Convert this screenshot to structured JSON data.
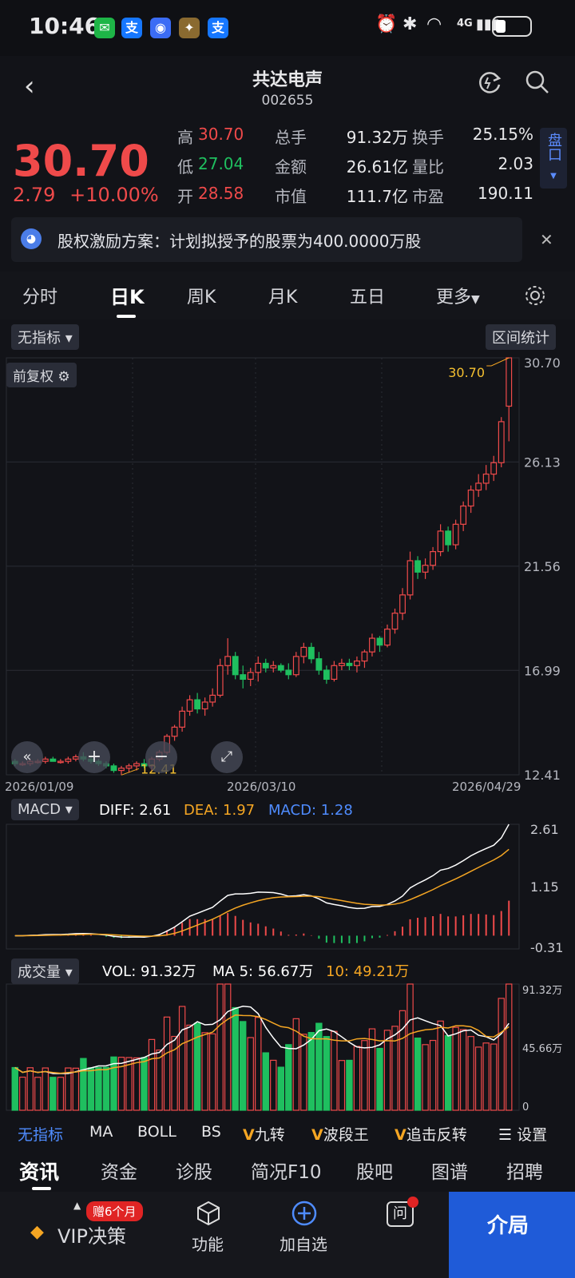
{
  "status": {
    "time": "10:46",
    "battery_icon": "battery-icon",
    "network": "4G"
  },
  "header": {
    "title": "共达电声",
    "code": "002655"
  },
  "quote": {
    "price": "30.70",
    "change": "2.79",
    "change_pct": "+10.00%",
    "rows": [
      {
        "l1": "高",
        "v1": "30.70",
        "l2": "总手",
        "v2": "91.32万",
        "l3": "换手",
        "v3": "25.15%"
      },
      {
        "l1": "低",
        "v1": "27.04",
        "l2": "金额",
        "v2": "26.61亿",
        "l3": "量比",
        "v3": "2.03"
      },
      {
        "l1": "开",
        "v1": "28.58",
        "l2": "市值",
        "v2": "111.7亿",
        "l3": "市盈",
        "v3": "190.11"
      }
    ],
    "pankou": "盘口"
  },
  "notice": {
    "text": "股权激励方案：计划拟授予的股票为400.0000万股"
  },
  "tabs": [
    "分时",
    "日K",
    "周K",
    "月K",
    "五日",
    "更多"
  ],
  "chart_controls": {
    "indicator": "无指标",
    "range_stat": "区间统计",
    "adjust": "前复权"
  },
  "chart_data": [
    {
      "type": "candlestick",
      "title": "",
      "y_ticks": [
        "30.70",
        "26.13",
        "21.56",
        "16.99",
        "12.41"
      ],
      "ylim": [
        12.41,
        30.7
      ],
      "x_ticks": [
        "2026/01/09",
        "2026/03/10",
        "2026/04/29"
      ],
      "annotations": [
        "30.70",
        "12.41"
      ],
      "candles": [
        [
          13.0,
          13.1,
          12.8,
          12.9
        ],
        [
          12.9,
          13.0,
          12.8,
          12.9
        ],
        [
          12.9,
          13.1,
          12.8,
          13.0
        ],
        [
          13.0,
          13.1,
          12.9,
          13.0
        ],
        [
          13.0,
          13.2,
          12.9,
          13.1
        ],
        [
          13.1,
          13.2,
          13.0,
          13.0
        ],
        [
          13.0,
          13.1,
          12.9,
          13.0
        ],
        [
          13.0,
          13.2,
          12.9,
          13.1
        ],
        [
          13.1,
          13.3,
          13.0,
          13.2
        ],
        [
          13.2,
          13.4,
          13.0,
          13.1
        ],
        [
          13.1,
          13.2,
          12.9,
          13.0
        ],
        [
          13.0,
          13.1,
          12.8,
          12.9
        ],
        [
          12.9,
          13.0,
          12.7,
          12.8
        ],
        [
          12.8,
          12.9,
          12.5,
          12.6
        ],
        [
          12.6,
          12.8,
          12.4,
          12.7
        ],
        [
          12.7,
          12.9,
          12.5,
          12.8
        ],
        [
          12.8,
          13.0,
          12.6,
          12.9
        ],
        [
          12.9,
          13.1,
          12.7,
          12.8
        ],
        [
          12.8,
          13.2,
          12.6,
          13.1
        ],
        [
          13.1,
          13.5,
          13.0,
          13.4
        ],
        [
          13.4,
          14.2,
          13.3,
          14.1
        ],
        [
          14.1,
          14.6,
          13.9,
          14.5
        ],
        [
          14.5,
          15.4,
          14.3,
          15.2
        ],
        [
          15.2,
          15.9,
          15.0,
          15.7
        ],
        [
          15.7,
          16.0,
          15.1,
          15.3
        ],
        [
          15.3,
          15.8,
          15.0,
          15.6
        ],
        [
          15.6,
          16.2,
          15.4,
          15.9
        ],
        [
          15.9,
          17.5,
          15.8,
          17.2
        ],
        [
          17.2,
          18.4,
          16.8,
          17.6
        ],
        [
          17.6,
          17.8,
          16.6,
          16.8
        ],
        [
          16.8,
          17.2,
          16.2,
          16.6
        ],
        [
          16.6,
          17.1,
          16.3,
          16.9
        ],
        [
          16.9,
          17.6,
          16.5,
          17.3
        ],
        [
          17.3,
          17.5,
          16.9,
          17.1
        ],
        [
          17.1,
          17.4,
          16.9,
          17.2
        ],
        [
          17.2,
          17.3,
          16.9,
          17.0
        ],
        [
          17.0,
          17.3,
          16.6,
          16.8
        ],
        [
          16.8,
          17.8,
          16.7,
          17.6
        ],
        [
          17.6,
          18.2,
          17.3,
          18.0
        ],
        [
          18.0,
          18.2,
          17.3,
          17.5
        ],
        [
          17.5,
          17.8,
          16.8,
          17.0
        ],
        [
          17.0,
          17.2,
          16.4,
          16.6
        ],
        [
          16.6,
          17.4,
          16.5,
          17.2
        ],
        [
          17.2,
          17.5,
          17.0,
          17.3
        ],
        [
          17.3,
          17.5,
          17.0,
          17.2
        ],
        [
          17.2,
          17.6,
          16.9,
          17.4
        ],
        [
          17.4,
          17.9,
          17.1,
          17.8
        ],
        [
          17.8,
          18.6,
          17.6,
          18.4
        ],
        [
          18.4,
          18.5,
          17.8,
          18.1
        ],
        [
          18.1,
          19.0,
          18.0,
          18.8
        ],
        [
          18.8,
          19.7,
          18.6,
          19.5
        ],
        [
          19.5,
          20.6,
          19.2,
          20.3
        ],
        [
          20.3,
          22.2,
          20.1,
          21.8
        ],
        [
          21.8,
          22.0,
          21.0,
          21.3
        ],
        [
          21.3,
          21.9,
          21.0,
          21.6
        ],
        [
          21.6,
          22.4,
          21.4,
          22.2
        ],
        [
          22.2,
          23.4,
          22.0,
          23.1
        ],
        [
          23.1,
          23.3,
          22.2,
          22.5
        ],
        [
          22.5,
          23.6,
          22.3,
          23.4
        ],
        [
          23.4,
          24.4,
          23.1,
          24.2
        ],
        [
          24.2,
          25.1,
          23.9,
          24.9
        ],
        [
          24.9,
          25.6,
          24.6,
          25.2
        ],
        [
          25.2,
          26.0,
          24.9,
          25.6
        ],
        [
          25.6,
          26.4,
          25.3,
          26.1
        ],
        [
          26.1,
          28.1,
          25.9,
          27.9
        ],
        [
          28.58,
          30.7,
          27.04,
          30.7
        ]
      ]
    },
    {
      "type": "macd",
      "labels": {
        "diff": "DIFF: 2.61",
        "dea": "DEA: 1.97",
        "macd": "MACD: 1.28",
        "tag": "MACD"
      },
      "y_ticks": [
        "2.61",
        "1.15",
        "-0.31"
      ],
      "ylim": [
        -0.31,
        2.61
      ]
    },
    {
      "type": "volume",
      "labels": {
        "vol": "VOL: 91.32万",
        "ma5": "MA 5: 56.67万",
        "ma10": "10: 49.21万",
        "tag": "成交量"
      },
      "y_ticks": [
        "91.32万",
        "45.66万",
        "0"
      ],
      "ylim": [
        0,
        91.32
      ]
    }
  ],
  "indicator_bar": [
    "无指标",
    "MA",
    "BOLL",
    "BS",
    "九转",
    "波段王",
    "追击反转",
    "设置"
  ],
  "bottom_tabs": [
    "资讯",
    "资金",
    "诊股",
    "简况F10",
    "股吧",
    "图谱",
    "招聘"
  ],
  "navbar": {
    "vip_badge": "赠6个月",
    "items": [
      "VIP决策",
      "功能",
      "加自选",
      "问"
    ],
    "last": "介局"
  }
}
